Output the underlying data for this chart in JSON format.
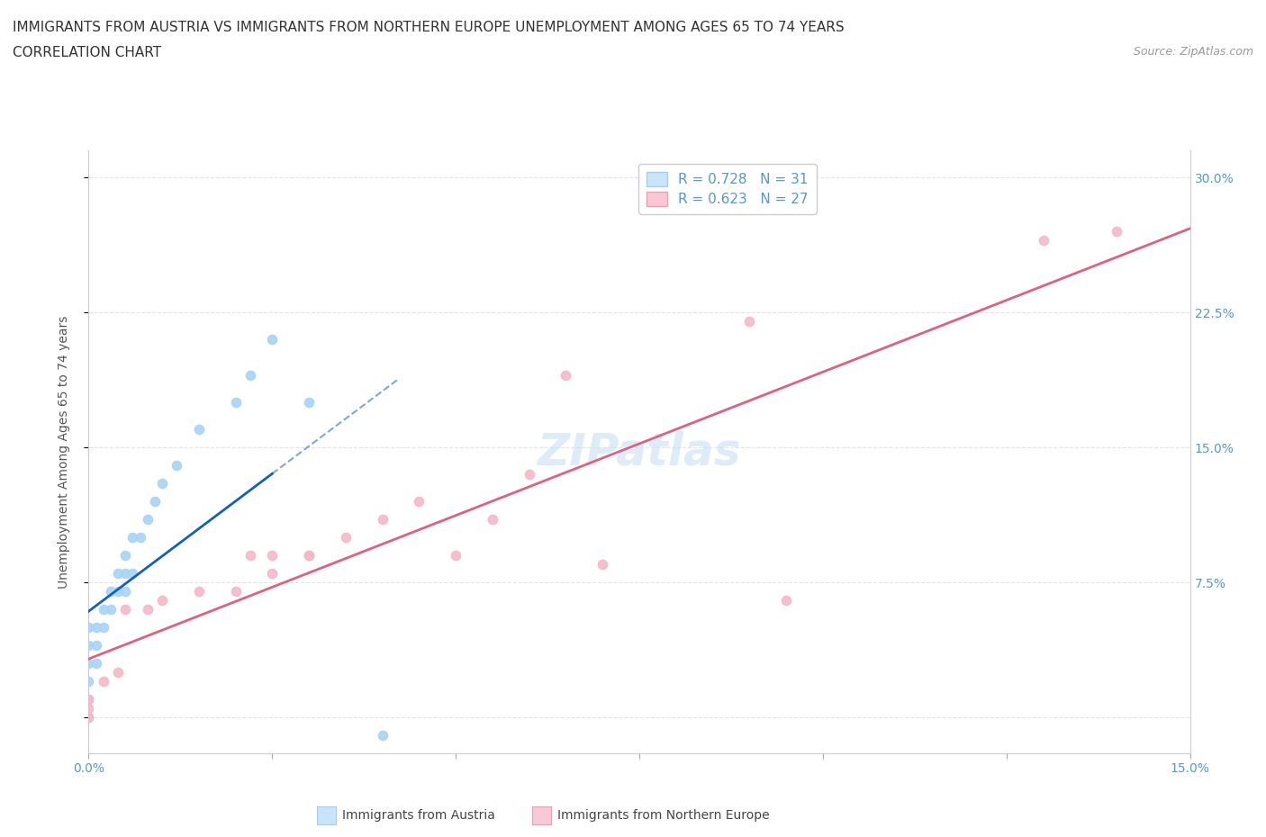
{
  "title_line1": "IMMIGRANTS FROM AUSTRIA VS IMMIGRANTS FROM NORTHERN EUROPE UNEMPLOYMENT AMONG AGES 65 TO 74 YEARS",
  "title_line2": "CORRELATION CHART",
  "source_text": "Source: ZipAtlas.com",
  "ylabel": "Unemployment Among Ages 65 to 74 years",
  "xlim": [
    0.0,
    0.15
  ],
  "ylim": [
    -0.02,
    0.315
  ],
  "xticks": [
    0.0,
    0.025,
    0.05,
    0.075,
    0.1,
    0.125,
    0.15
  ],
  "ytick_positions": [
    0.0,
    0.075,
    0.15,
    0.225,
    0.3
  ],
  "ytick_labels": [
    "",
    "7.5%",
    "15.0%",
    "22.5%",
    "30.0%"
  ],
  "xtick_labels": [
    "0.0%",
    "",
    "",
    "",
    "",
    "",
    "15.0%"
  ],
  "austria_r": 0.728,
  "austria_n": 31,
  "northern_r": 0.623,
  "northern_n": 27,
  "austria_color": "#A8D4F5",
  "northern_color": "#F5B8C8",
  "austria_line_color": "#1060C0",
  "northern_line_color": "#E06080",
  "legend_fill_austria": "#C8E4F8",
  "legend_fill_northern": "#FAC8D4",
  "watermark_text": "ZIPatlas",
  "austria_x": [
    0.0,
    0.0,
    0.0,
    0.0,
    0.0,
    0.0,
    0.001,
    0.001,
    0.001,
    0.002,
    0.002,
    0.003,
    0.003,
    0.004,
    0.004,
    0.005,
    0.005,
    0.005,
    0.006,
    0.006,
    0.007,
    0.008,
    0.009,
    0.01,
    0.012,
    0.015,
    0.02,
    0.022,
    0.025,
    0.03,
    0.04
  ],
  "austria_y": [
    0.0,
    0.01,
    0.02,
    0.03,
    0.04,
    0.05,
    0.03,
    0.04,
    0.05,
    0.05,
    0.06,
    0.06,
    0.07,
    0.07,
    0.08,
    0.07,
    0.08,
    0.09,
    0.08,
    0.1,
    0.1,
    0.11,
    0.12,
    0.13,
    0.14,
    0.16,
    0.175,
    0.19,
    0.21,
    0.175,
    -0.01
  ],
  "northern_x": [
    0.0,
    0.0,
    0.0,
    0.002,
    0.004,
    0.005,
    0.008,
    0.01,
    0.015,
    0.02,
    0.022,
    0.025,
    0.025,
    0.03,
    0.03,
    0.035,
    0.04,
    0.045,
    0.05,
    0.055,
    0.06,
    0.065,
    0.07,
    0.09,
    0.095,
    0.13,
    0.14
  ],
  "northern_y": [
    0.0,
    0.005,
    0.01,
    0.02,
    0.025,
    0.06,
    0.06,
    0.065,
    0.07,
    0.07,
    0.09,
    0.08,
    0.09,
    0.09,
    0.09,
    0.1,
    0.11,
    0.12,
    0.09,
    0.11,
    0.135,
    0.19,
    0.085,
    0.22,
    0.065,
    0.265,
    0.27
  ],
  "grid_color": "#DDDDDD",
  "bg_color": "#FFFFFF",
  "title_fontsize": 11,
  "tick_fontsize": 10,
  "legend_fontsize": 11,
  "watermark_fontsize": 36,
  "tick_color": "#5599CC",
  "ylabel_color": "#555555",
  "title_color": "#333333",
  "source_color": "#999999"
}
